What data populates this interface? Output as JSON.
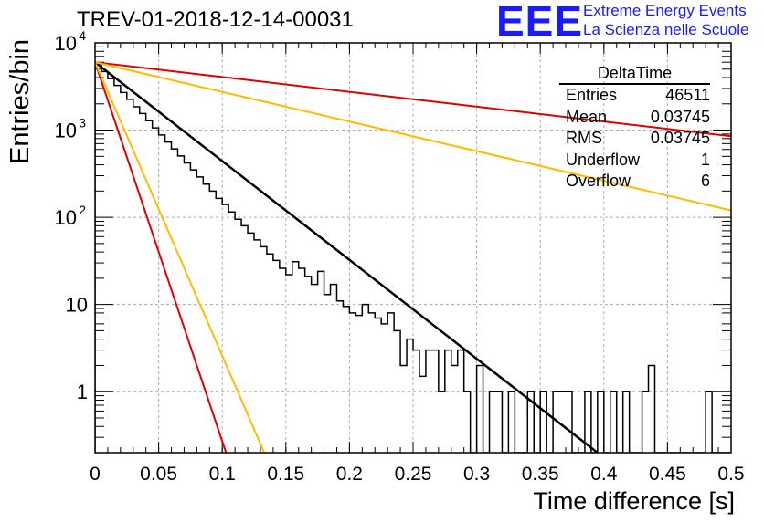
{
  "title": "TREV-01-2018-12-14-00031",
  "logo": {
    "mark": "EEE",
    "line1": "Extreme Energy Events",
    "line2": "La Scienza nelle Scuole"
  },
  "colors": {
    "histogram": "#000000",
    "fit": "#000000",
    "red": "#e00000",
    "yellow": "#ffbb00",
    "grid": "#aaaaaa",
    "logo": "#1a1aff"
  },
  "stats": {
    "title": "DeltaTime",
    "rows": [
      {
        "label": "Entries",
        "value": "46511"
      },
      {
        "label": "Mean",
        "value": "0.03745"
      },
      {
        "label": "RMS",
        "value": "0.03745"
      },
      {
        "label": "Underflow",
        "value": "1"
      },
      {
        "label": "Overflow",
        "value": "6"
      }
    ]
  },
  "chart_data": {
    "type": "line",
    "title": "TREV-01-2018-12-14-00031",
    "xlabel": "Time difference [s]",
    "ylabel": "Entries/bin",
    "xlim": [
      0,
      0.5
    ],
    "ylim": [
      0.2,
      10000
    ],
    "yscale": "log",
    "grid": true,
    "x_ticks": [
      "0",
      "0.05",
      "0.1",
      "0.15",
      "0.2",
      "0.25",
      "0.3",
      "0.35",
      "0.4",
      "0.45",
      "0.5"
    ],
    "y_ticks": [
      {
        "value": 1,
        "label": "1"
      },
      {
        "value": 10,
        "label": "10"
      },
      {
        "value": 100,
        "label": "10",
        "exp": "2"
      },
      {
        "value": 1000,
        "label": "10",
        "exp": "3"
      },
      {
        "value": 10000,
        "label": "10",
        "exp": "4"
      }
    ],
    "histogram": {
      "bin_width": 0.005,
      "counts": [
        5700,
        4700,
        3900,
        3250,
        2700,
        2250,
        1850,
        1550,
        1280,
        1060,
        880,
        730,
        610,
        505,
        420,
        350,
        290,
        240,
        200,
        165,
        140,
        115,
        95,
        80,
        66,
        55,
        46,
        38,
        32,
        26,
        22,
        31,
        26,
        21,
        17,
        24,
        13,
        17,
        11,
        9.5,
        8,
        7.5,
        10,
        8,
        7,
        6,
        8,
        5,
        2,
        4,
        3,
        1.5,
        3,
        3,
        1,
        3,
        2,
        3,
        1,
        0,
        2,
        0,
        1,
        1,
        0,
        1,
        0,
        0,
        1,
        0,
        1,
        0,
        1,
        1,
        1,
        0,
        0,
        1,
        0,
        1,
        0,
        1,
        0,
        1,
        0,
        0,
        1,
        2,
        0,
        0,
        0,
        0,
        0,
        0,
        0,
        0,
        1,
        0,
        0,
        0
      ]
    },
    "series": [
      {
        "name": "",
        "color": "#000000",
        "x": [
          0,
          0.395
        ],
        "y": [
          6000,
          0.2
        ]
      },
      {
        "name": "",
        "color": "#e00000",
        "x": [
          0,
          0.5
        ],
        "y": [
          6000,
          850
        ]
      },
      {
        "name": "",
        "color": "#ffbb00",
        "x": [
          0,
          0.5
        ],
        "y": [
          6000,
          120
        ]
      },
      {
        "name": "",
        "color": "#e00000",
        "x": [
          0,
          0.103
        ],
        "y": [
          6000,
          0.2
        ]
      },
      {
        "name": "",
        "color": "#ffbb00",
        "x": [
          0,
          0.133
        ],
        "y": [
          6000,
          0.2
        ]
      }
    ]
  }
}
